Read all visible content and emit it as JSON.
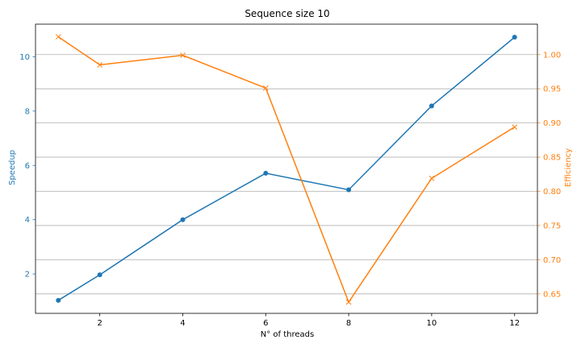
{
  "chart_data": {
    "type": "line",
    "title": "Sequence size 10",
    "xlabel": "N° of threads",
    "x": [
      1,
      2,
      4,
      6,
      8,
      10,
      12
    ],
    "x_ticks": [
      "2",
      "4",
      "6",
      "8",
      "10",
      "12"
    ],
    "xlim": [
      0.45,
      12.55
    ],
    "grid": "horizontal lines on right axis",
    "legend": "none",
    "series": [
      {
        "axis": "left",
        "label": "Speedup",
        "color": "#1f77b4",
        "marker": "circle",
        "values": [
          1.03,
          1.97,
          4.0,
          5.71,
          5.1,
          8.19,
          10.72
        ]
      },
      {
        "axis": "right",
        "label": "Efficiency",
        "color": "#ff7f0e",
        "marker": "x",
        "values": [
          1.026,
          0.985,
          0.999,
          0.951,
          0.638,
          0.819,
          0.894
        ]
      }
    ],
    "left_axis": {
      "label": "Speedup",
      "ylim": [
        0.55,
        11.2
      ],
      "ticks": [
        "2",
        "4",
        "6",
        "8",
        "10"
      ],
      "tick_values": [
        2,
        4,
        6,
        8,
        10
      ]
    },
    "right_axis": {
      "label": "Efficiency",
      "ylim": [
        0.6215,
        1.0445
      ],
      "ticks": [
        "0.65",
        "0.70",
        "0.75",
        "0.80",
        "0.85",
        "0.90",
        "0.95",
        "1.00"
      ],
      "tick_values": [
        0.65,
        0.7,
        0.75,
        0.8,
        0.85,
        0.9,
        0.95,
        1.0
      ]
    }
  }
}
